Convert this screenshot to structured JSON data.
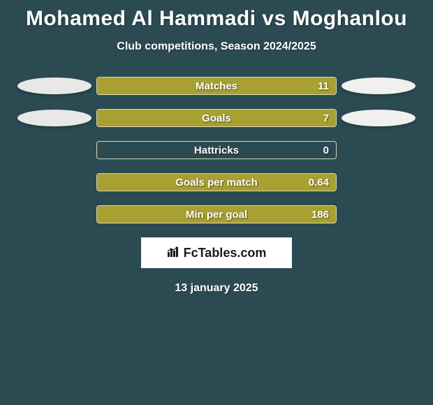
{
  "background_color": "#2c4a52",
  "title": {
    "text": "Mohamed Al Hammadi vs Moghanlou",
    "fontsize": 30,
    "color": "#ffffff"
  },
  "subtitle": {
    "text": "Club competitions, Season 2024/2025",
    "fontsize": 16,
    "color": "#ffffff"
  },
  "bar_style": {
    "outer_width": 344,
    "outer_height": 26,
    "border_color": "#d8d8c0",
    "fill_color": "#a8a030",
    "label_fontsize": 15,
    "value_fontsize": 15,
    "text_color": "#ffffff"
  },
  "side_ellipse": {
    "left_color": "#e8e8e8",
    "right_color": "#f0f0f0",
    "width": 106,
    "height": 24
  },
  "rows": [
    {
      "label": "Matches",
      "value": "11",
      "fill_pct": 100,
      "show_left": true,
      "show_right": true
    },
    {
      "label": "Goals",
      "value": "7",
      "fill_pct": 100,
      "show_left": true,
      "show_right": true
    },
    {
      "label": "Hattricks",
      "value": "0",
      "fill_pct": 0,
      "show_left": false,
      "show_right": false
    },
    {
      "label": "Goals per match",
      "value": "0.64",
      "fill_pct": 100,
      "show_left": false,
      "show_right": false
    },
    {
      "label": "Min per goal",
      "value": "186",
      "fill_pct": 100,
      "show_left": false,
      "show_right": false
    }
  ],
  "logo": {
    "icon_name": "bar-chart-icon",
    "text": "FcTables.com",
    "bar_color": "#1a1a1a",
    "box_bg": "#ffffff"
  },
  "date": {
    "text": "13 january 2025",
    "fontsize": 16
  }
}
